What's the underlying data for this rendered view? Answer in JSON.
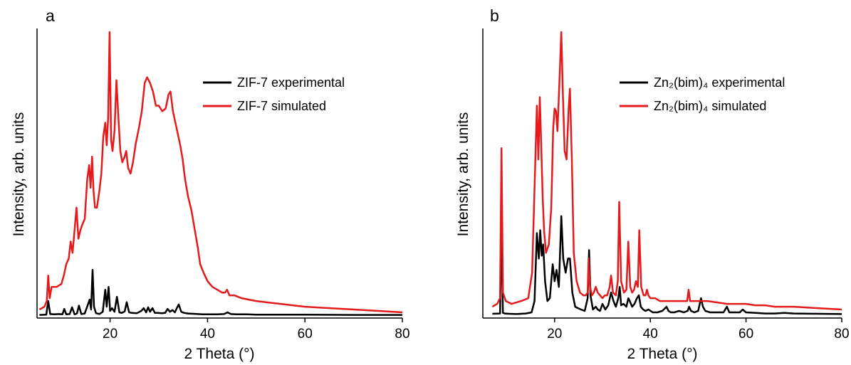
{
  "chart_data": [
    {
      "type": "line",
      "panel_label": "a",
      "xlabel": "2 Theta (°)",
      "ylabel": "Intensity, arb. units",
      "xlim": [
        5,
        80
      ],
      "ylim": [
        0,
        1
      ],
      "xticks": [
        20,
        40,
        60,
        80
      ],
      "y_tick_labels": false,
      "grid": false,
      "legend_position": "top-right",
      "series": [
        {
          "name": "ZIF-7 experimental",
          "color": "#000000",
          "x": [
            5.5,
            6.9,
            7.3,
            7.7,
            8.5,
            9.5,
            10.2,
            10.6,
            11,
            11.7,
            12.2,
            12.7,
            13.2,
            13.6,
            14.1,
            14.8,
            15.5,
            15.8,
            16.1,
            16.4,
            16.7,
            17.1,
            17.8,
            18.5,
            19,
            19.3,
            19.7,
            20,
            20.4,
            20.9,
            21.4,
            21.9,
            22.4,
            23,
            23.4,
            23.9,
            24.5,
            25.5,
            26.4,
            26.9,
            27.4,
            27.8,
            28.2,
            28.7,
            29.2,
            29.8,
            30.6,
            31.3,
            31.8,
            32.3,
            32.8,
            33.3,
            33.7,
            34.1,
            34.6,
            35.2,
            36,
            37,
            38,
            39,
            40.5,
            42,
            43.4,
            44.1,
            44.8,
            46,
            48,
            50,
            55,
            60,
            70,
            80
          ],
          "y": [
            0.001,
            0.002,
            0.05,
            0.004,
            0.003,
            0.004,
            0.003,
            0.022,
            0.003,
            0.004,
            0.028,
            0.003,
            0.006,
            0.034,
            0.004,
            0.006,
            0.04,
            0.055,
            0.02,
            0.16,
            0.03,
            0.007,
            0.004,
            0.012,
            0.09,
            0.03,
            0.1,
            0.015,
            0.025,
            0.012,
            0.065,
            0.01,
            0.008,
            0.013,
            0.046,
            0.01,
            0.008,
            0.007,
            0.015,
            0.025,
            0.01,
            0.028,
            0.012,
            0.025,
            0.008,
            0.008,
            0.007,
            0.008,
            0.022,
            0.012,
            0.018,
            0.01,
            0.025,
            0.038,
            0.012,
            0.008,
            0.006,
            0.005,
            0.004,
            0.003,
            0.003,
            0.003,
            0.004,
            0.01,
            0.004,
            0.003,
            0.003,
            0.002,
            0.002,
            0.002,
            0.001,
            0.001
          ]
        },
        {
          "name": "ZIF-7 simulated",
          "color": "#e41a1c",
          "x": [
            5.5,
            6.5,
            7,
            7.3,
            7.6,
            8,
            9,
            10,
            10.5,
            11,
            11.5,
            11.9,
            12.3,
            12.7,
            13.1,
            13.5,
            13.9,
            14.3,
            14.8,
            15.3,
            15.7,
            16,
            16.3,
            16.6,
            16.9,
            17.3,
            17.8,
            18.2,
            18.6,
            19,
            19.3,
            19.6,
            19.9,
            20.2,
            20.5,
            20.9,
            21.3,
            21.7,
            22.1,
            22.5,
            23,
            23.3,
            23.7,
            24.2,
            24.7,
            25.3,
            25.9,
            26.5,
            27.1,
            27.6,
            28.2,
            28.8,
            29.4,
            30,
            30.7,
            31.4,
            32,
            32.4,
            32.9,
            33.4,
            33.9,
            34.4,
            34.9,
            35.4,
            36,
            36.7,
            37.4,
            38,
            38.5,
            39.2,
            40,
            41,
            42,
            43,
            43.6,
            44,
            44.5,
            45.5,
            47,
            50,
            55,
            60,
            70,
            80
          ],
          "y": [
            0.02,
            0.03,
            0.05,
            0.14,
            0.06,
            0.1,
            0.1,
            0.11,
            0.14,
            0.18,
            0.2,
            0.26,
            0.22,
            0.3,
            0.38,
            0.27,
            0.3,
            0.32,
            0.34,
            0.48,
            0.53,
            0.45,
            0.56,
            0.44,
            0.38,
            0.38,
            0.44,
            0.5,
            0.63,
            0.68,
            0.6,
            0.7,
            1.0,
            0.62,
            0.58,
            0.65,
            0.83,
            0.7,
            0.58,
            0.54,
            0.56,
            0.58,
            0.52,
            0.5,
            0.54,
            0.61,
            0.66,
            0.72,
            0.82,
            0.84,
            0.82,
            0.79,
            0.74,
            0.74,
            0.72,
            0.73,
            0.78,
            0.79,
            0.72,
            0.68,
            0.64,
            0.6,
            0.55,
            0.48,
            0.42,
            0.37,
            0.3,
            0.24,
            0.18,
            0.15,
            0.12,
            0.1,
            0.09,
            0.08,
            0.08,
            0.09,
            0.07,
            0.07,
            0.06,
            0.05,
            0.04,
            0.03,
            0.02,
            0.01
          ]
        }
      ]
    },
    {
      "type": "line",
      "panel_label": "b",
      "xlabel": "2 Theta (°)",
      "ylabel": "Intensity, arb. units",
      "xlim": [
        5,
        80
      ],
      "ylim": [
        0,
        1
      ],
      "xticks": [
        20,
        40,
        60,
        80
      ],
      "y_tick_labels": false,
      "grid": false,
      "legend_position": "top-right",
      "series": [
        {
          "name": "Zn₂(bim)₄ experimental",
          "color": "#000000",
          "x": [
            7,
            8.6,
            8.9,
            9.2,
            9.6,
            10.5,
            12,
            14,
            15.2,
            15.8,
            16.3,
            16.7,
            17,
            17.3,
            17.6,
            18,
            18.5,
            19,
            19.6,
            20,
            20.4,
            20.9,
            21.4,
            21.8,
            22.3,
            22.8,
            23.2,
            23.7,
            24.3,
            24.9,
            25.5,
            26.3,
            26.9,
            27.2,
            27.5,
            28,
            28.6,
            29,
            29.5,
            30,
            30.6,
            31.2,
            31.8,
            32.3,
            32.8,
            33.3,
            33.6,
            33.9,
            34.4,
            35,
            35.4,
            35.7,
            36.2,
            36.7,
            37.2,
            37.6,
            38,
            38.5,
            39,
            39.6,
            40.5,
            41.5,
            42.5,
            43.4,
            43.8,
            44.3,
            45,
            46,
            47,
            47.8,
            48.1,
            48.5,
            49.2,
            50,
            50.6,
            51,
            51.5,
            52.5,
            54,
            55.3,
            56,
            56.5,
            57.5,
            58.7,
            59.3,
            60,
            62,
            64,
            66,
            68,
            70,
            75,
            80
          ],
          "y": [
            0.005,
            0.006,
            0.31,
            0.008,
            0.006,
            0.005,
            0.004,
            0.006,
            0.01,
            0.05,
            0.29,
            0.2,
            0.3,
            0.21,
            0.25,
            0.12,
            0.05,
            0.06,
            0.18,
            0.12,
            0.16,
            0.1,
            0.35,
            0.2,
            0.15,
            0.2,
            0.2,
            0.08,
            0.03,
            0.025,
            0.02,
            0.015,
            0.06,
            0.23,
            0.07,
            0.02,
            0.03,
            0.02,
            0.015,
            0.04,
            0.02,
            0.035,
            0.08,
            0.05,
            0.03,
            0.06,
            0.1,
            0.035,
            0.04,
            0.03,
            0.06,
            0.05,
            0.03,
            0.04,
            0.06,
            0.07,
            0.03,
            0.02,
            0.015,
            0.02,
            0.01,
            0.01,
            0.015,
            0.03,
            0.015,
            0.01,
            0.01,
            0.015,
            0.01,
            0.015,
            0.03,
            0.015,
            0.01,
            0.015,
            0.06,
            0.03,
            0.015,
            0.01,
            0.01,
            0.01,
            0.03,
            0.01,
            0.01,
            0.01,
            0.02,
            0.01,
            0.008,
            0.006,
            0.006,
            0.008,
            0.006,
            0.005,
            0.004
          ]
        },
        {
          "name": "Zn₂(bim)₄ simulated",
          "color": "#e41a1c",
          "x": [
            7,
            8,
            8.6,
            8.9,
            9.2,
            9.8,
            11,
            13,
            14.5,
            15.3,
            15.9,
            16.3,
            16.6,
            16.9,
            17.2,
            17.5,
            17.8,
            18.2,
            18.8,
            19.3,
            19.7,
            20,
            20.3,
            20.6,
            21,
            21.4,
            21.7,
            22.1,
            22.5,
            22.9,
            23.2,
            23.6,
            24,
            24.6,
            25.3,
            26,
            26.5,
            26.9,
            27.1,
            27.4,
            27.8,
            28.2,
            28.6,
            29,
            29.5,
            30,
            30.5,
            31,
            31.5,
            31.8,
            32.2,
            32.8,
            33.2,
            33.5,
            33.9,
            34.5,
            35,
            35.4,
            35.8,
            36.2,
            36.6,
            37,
            37.4,
            37.7,
            38.1,
            38.6,
            39,
            39.3,
            39.6,
            40,
            41,
            42,
            43,
            44,
            45,
            46,
            47,
            47.7,
            48,
            48.3,
            49,
            50,
            52,
            54,
            56,
            58,
            60,
            62,
            64,
            66,
            68,
            70,
            75,
            80
          ],
          "y": [
            0.03,
            0.04,
            0.06,
            0.59,
            0.08,
            0.05,
            0.04,
            0.05,
            0.06,
            0.15,
            0.5,
            0.74,
            0.55,
            0.77,
            0.6,
            0.42,
            0.3,
            0.22,
            0.25,
            0.38,
            0.66,
            0.73,
            0.72,
            0.65,
            0.82,
            1.0,
            0.8,
            0.58,
            0.55,
            0.72,
            0.8,
            0.55,
            0.22,
            0.12,
            0.08,
            0.07,
            0.07,
            0.08,
            0.2,
            0.1,
            0.07,
            0.08,
            0.1,
            0.08,
            0.07,
            0.06,
            0.07,
            0.07,
            0.1,
            0.14,
            0.08,
            0.07,
            0.12,
            0.4,
            0.12,
            0.08,
            0.09,
            0.26,
            0.1,
            0.08,
            0.09,
            0.12,
            0.1,
            0.3,
            0.1,
            0.07,
            0.07,
            0.09,
            0.07,
            0.06,
            0.06,
            0.05,
            0.05,
            0.05,
            0.05,
            0.05,
            0.05,
            0.05,
            0.09,
            0.05,
            0.05,
            0.05,
            0.05,
            0.045,
            0.04,
            0.04,
            0.04,
            0.035,
            0.035,
            0.03,
            0.03,
            0.03,
            0.025,
            0.02
          ]
        }
      ]
    }
  ]
}
